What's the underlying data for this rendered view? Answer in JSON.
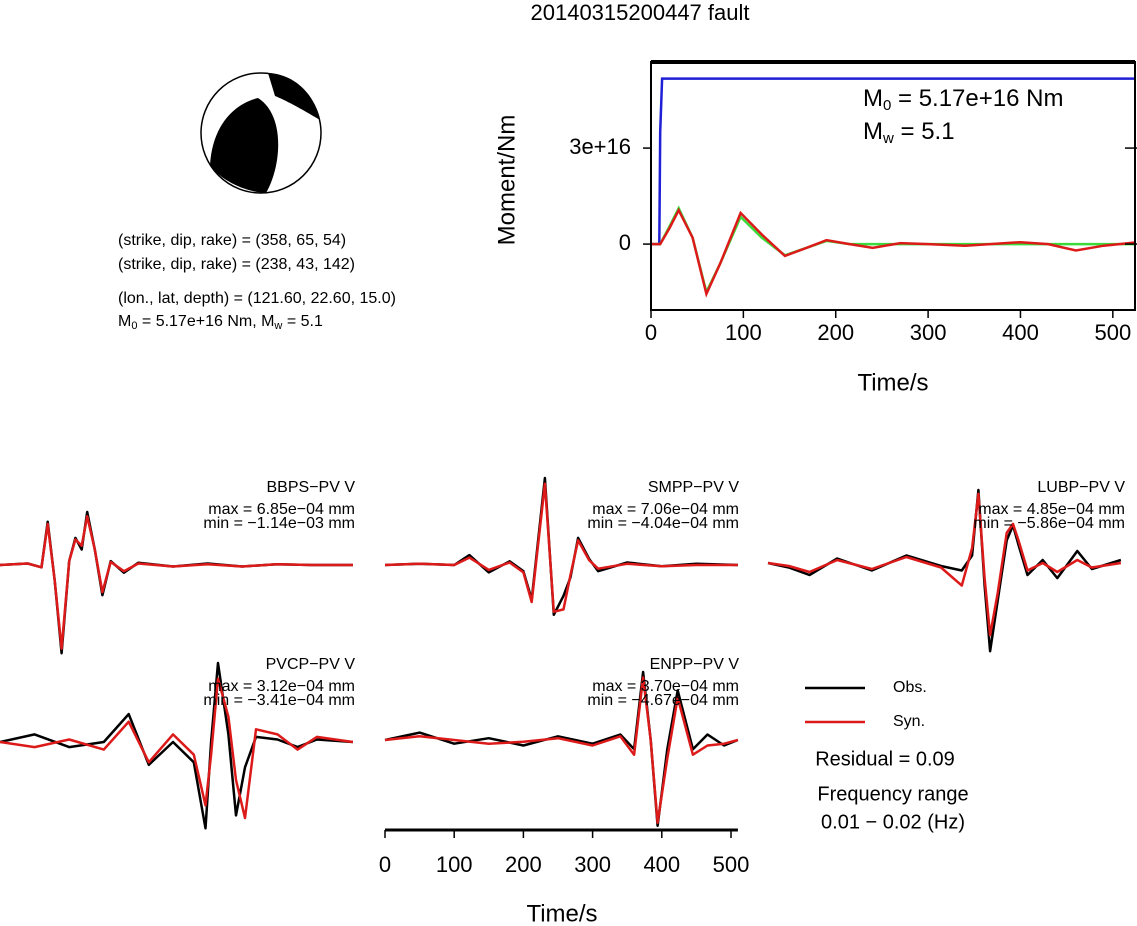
{
  "title": "20140315200447 fault",
  "focal_mechanism": {
    "lines": [
      "(strike, dip, rake) = (358, 65, 54)",
      "(strike, dip, rake) = (238, 43, 142)",
      "(lon., lat, depth) = (121.60, 22.60, 15.0)"
    ],
    "moment": {
      "m0_symbol": "M",
      "m0_sub": "0",
      "m0_text": " = 5.17e+16 Nm, ",
      "mw_symbol": "M",
      "mw_sub": "w",
      "mw_text": " = 5.1"
    }
  },
  "chart_data": [
    {
      "type": "line",
      "xlabel": "Time/s",
      "ylabel": "Moment/Nm",
      "xlim": [
        0,
        524
      ],
      "ylim": [
        -2.06e+16,
        5.69e+16
      ],
      "xticks": [
        0,
        100,
        200,
        300,
        400,
        500
      ],
      "yticks": [
        0,
        {
          "value": 3e+16,
          "label": "3e+16"
        }
      ],
      "annotations": [
        {
          "symbol": "M",
          "sub": "0",
          "text": " = 5.17e+16 Nm"
        },
        {
          "symbol": "M",
          "sub": "w",
          "text": " = 5.1"
        }
      ],
      "series": [
        {
          "color": "#1f1fd6",
          "x": [
            0,
            9,
            10,
            12,
            524
          ],
          "values": [
            0,
            0,
            3.5e+16,
            5.17e+16,
            5.17e+16
          ]
        },
        {
          "color": "#3ada3a",
          "x": [
            0,
            10,
            20,
            30,
            45,
            60,
            75,
            97,
            120,
            145,
            170,
            190,
            215,
            240,
            270,
            300,
            340,
            400,
            430,
            460,
            490,
            524
          ],
          "values": [
            0,
            0,
            5500000000000000.0,
            1.12e+16,
            2000000000000000.0,
            -1.5e+16,
            -6000000000000000.0,
            8500000000000000.0,
            2000000000000000.0,
            -3500000000000000.0,
            -1000000000000000.0,
            1000000000000000.0,
            0,
            0,
            0,
            0,
            0,
            0,
            0,
            0,
            0,
            0
          ]
        },
        {
          "color": "#dd1a1a",
          "x": [
            0,
            10,
            20,
            30,
            45,
            60,
            75,
            97,
            120,
            145,
            170,
            190,
            215,
            240,
            270,
            300,
            340,
            400,
            430,
            460,
            490,
            524
          ],
          "values": [
            0,
            0,
            5000000000000000.0,
            1.06e+16,
            2000000000000000.0,
            -1.56e+16,
            -6000000000000000.0,
            9700000000000000.0,
            3000000000000000.0,
            -3700000000000000.0,
            -1000000000000000.0,
            1200000000000000.0,
            0,
            -1200000000000000.0,
            300000000000000.0,
            0,
            -500000000000000.0,
            600000000000000.0,
            0,
            -2000000000000000.0,
            -500000000000000.0,
            500000000000000.0
          ]
        }
      ]
    },
    {
      "type": "waveforms",
      "xlabel": "Time/s",
      "xlim": [
        0,
        510
      ],
      "xticks": [
        0,
        100,
        200,
        300,
        400,
        500
      ],
      "legend": [
        {
          "name": "Obs.",
          "color": "#000000"
        },
        {
          "name": "Syn.",
          "color": "#dd1a1a"
        }
      ],
      "residual": "Residual = 0.09",
      "frequency_title": "Frequency range",
      "frequency": "0.01 − 0.02 (Hz)",
      "panels": [
        {
          "name": "BBPS−PV V",
          "max_label": "max = 6.85e−04 mm",
          "min_label": "min = −1.14e−03 mm",
          "x": [
            0,
            40,
            60,
            69,
            79,
            89,
            100,
            109,
            118,
            126,
            137,
            148,
            160,
            179,
            200,
            250,
            300,
            350,
            400,
            450,
            510
          ],
          "obs": [
            0,
            2e-05,
            -3e-05,
            0.00056,
            -0.0002,
            -0.00114,
            5e-05,
            0.00035,
            0.0002,
            0.000685,
            0.0002,
            -0.00039,
            5e-05,
            -0.0001,
            3e-05,
            -2e-05,
            2e-05,
            -2e-05,
            1e-05,
            0,
            0
          ],
          "syn": [
            0,
            2e-05,
            -3e-05,
            0.00053,
            -0.0002,
            -0.00108,
            5e-05,
            0.00033,
            0.00025,
            0.00063,
            0.0002,
            -0.00035,
            4e-05,
            -8e-05,
            2e-05,
            -2e-05,
            1e-05,
            -2e-05,
            1e-05,
            0,
            0
          ]
        },
        {
          "name": "SMPP−PV V",
          "max_label": "max = 7.06e−04 mm",
          "min_label": "min = −4.04e−04 mm",
          "x": [
            0,
            50,
            100,
            122,
            150,
            180,
            200,
            212,
            231,
            244,
            258,
            268,
            279,
            295,
            308,
            350,
            400,
            450,
            510
          ],
          "obs": [
            0,
            1e-05,
            0,
            8e-05,
            -6e-05,
            3e-05,
            -5e-05,
            -0.00028,
            0.000706,
            -0.000404,
            -0.00025,
            -0.0001,
            0.00022,
            5e-05,
            -5e-05,
            2e-05,
            -1e-05,
            1e-05,
            0
          ],
          "syn": [
            0,
            1e-05,
            0,
            6e-05,
            -4e-05,
            2e-05,
            -6e-05,
            -0.0003,
            0.00066,
            -0.00038,
            -0.00036,
            -8e-05,
            0.0002,
            4e-05,
            -3e-05,
            1e-05,
            -1e-05,
            0,
            0
          ]
        },
        {
          "name": "LUBP−PV V",
          "max_label": "max = 4.85e−04 mm",
          "min_label": "min = −5.86e−04 mm",
          "x": [
            0,
            30,
            60,
            100,
            150,
            200,
            250,
            280,
            295,
            304,
            313,
            321,
            332,
            345,
            354,
            362,
            375,
            397,
            418,
            447,
            468,
            510
          ],
          "obs": [
            0,
            -3e-05,
            -8e-05,
            3e-05,
            -5e-05,
            5e-05,
            -2e-05,
            -5e-05,
            5e-05,
            0.000485,
            -0.00015,
            -0.000586,
            -0.00025,
            0.00015,
            0.00025,
            0.00012,
            -8e-05,
            2e-05,
            -0.0001,
            8e-05,
            -4e-05,
            2e-05
          ],
          "syn": [
            0,
            -2e-05,
            -6e-05,
            2e-05,
            -4e-05,
            4e-05,
            -3e-05,
            -0.00015,
            0.0001,
            0.00046,
            -0.0001,
            -0.00048,
            -0.0002,
            0.0002,
            0.00026,
            0.00015,
            -5e-05,
            0,
            -6e-05,
            2e-05,
            -3e-05,
            0
          ]
        },
        {
          "name": "PVCP−PV V",
          "max_label": "max = 3.12e−04 mm",
          "min_label": "min = −3.41e−04 mm",
          "x": [
            0,
            50,
            100,
            150,
            186,
            215,
            250,
            280,
            297,
            305,
            315,
            330,
            341,
            354,
            370,
            401,
            430,
            458,
            510
          ],
          "obs": [
            0,
            3e-05,
            -2e-05,
            0,
            0.00011,
            -9e-05,
            0,
            -8e-05,
            -0.000341,
            0,
            0.000312,
            3e-05,
            -0.00029,
            -0.0001,
            2e-05,
            1e-05,
            -2e-05,
            1e-05,
            0
          ],
          "syn": [
            0,
            -2e-05,
            1e-05,
            -3e-05,
            8e-05,
            -8e-05,
            3e-05,
            -5e-05,
            -0.00025,
            -5e-05,
            0.00025,
            0.0001,
            -0.00015,
            -0.0003,
            5e-05,
            3e-05,
            -3e-05,
            2e-05,
            0
          ]
        },
        {
          "name": "ENPP−PV V",
          "max_label": "max = 3.70e−04 mm",
          "min_label": "min = −4.67e−04 mm",
          "x": [
            0,
            50,
            100,
            150,
            200,
            250,
            300,
            340,
            360,
            373,
            384,
            394,
            408,
            423,
            445,
            466,
            490,
            510
          ],
          "obs": [
            0,
            4e-05,
            -2e-05,
            1e-05,
            -3e-05,
            2e-05,
            -2e-05,
            3e-05,
            -5e-05,
            0.00037,
            0,
            -0.000467,
            -5e-05,
            0.00027,
            -5e-05,
            3e-05,
            -3e-05,
            0
          ],
          "syn": [
            0,
            2e-05,
            0,
            -2e-05,
            -1e-05,
            1e-05,
            -3e-05,
            2e-05,
            -8e-05,
            0.00034,
            0,
            -0.00045,
            -0.0001,
            0.00023,
            -8e-05,
            -3e-05,
            -2e-05,
            0
          ]
        }
      ]
    }
  ]
}
